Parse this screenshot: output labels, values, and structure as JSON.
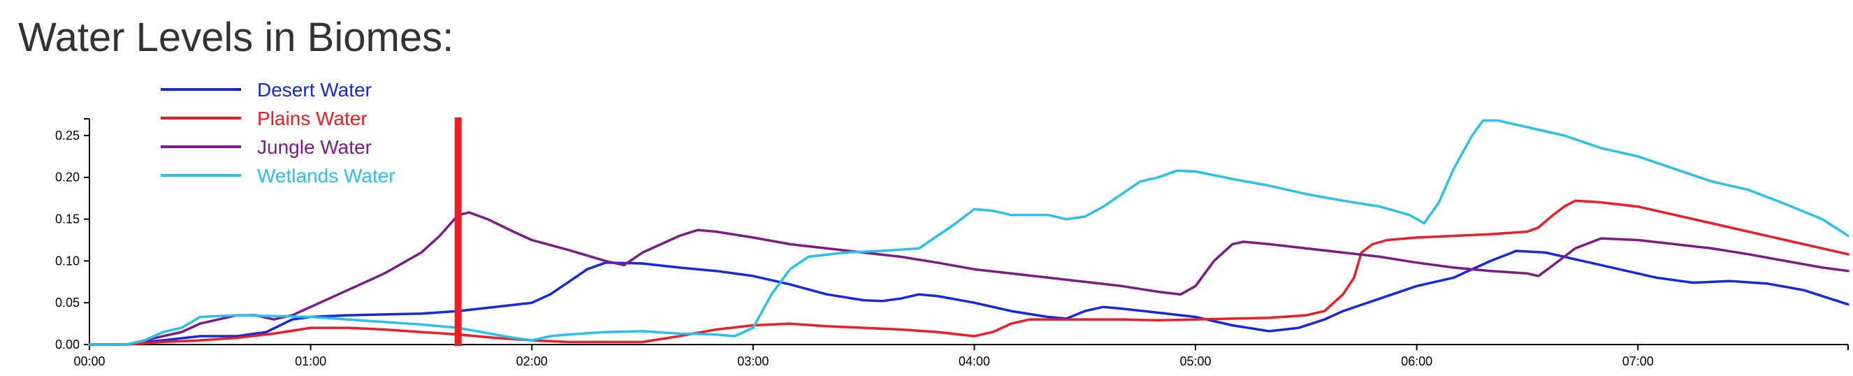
{
  "page": {
    "title": "Water Levels in Biomes:"
  },
  "chart_data": {
    "type": "line",
    "title": "Water Levels in Biomes:",
    "xlabel": "",
    "ylabel": "",
    "x_unit": "minutes",
    "xlim": [
      0,
      477
    ],
    "ylim": [
      0,
      0.27
    ],
    "x_ticks": [
      {
        "value": 0,
        "label": "00:00"
      },
      {
        "value": 60,
        "label": "01:00"
      },
      {
        "value": 120,
        "label": "02:00"
      },
      {
        "value": 180,
        "label": "03:00"
      },
      {
        "value": 240,
        "label": "04:00"
      },
      {
        "value": 300,
        "label": "05:00"
      },
      {
        "value": 360,
        "label": "06:00"
      },
      {
        "value": 420,
        "label": "07:00"
      }
    ],
    "y_ticks": [
      {
        "value": 0.0,
        "label": "0.00"
      },
      {
        "value": 0.05,
        "label": "0.05"
      },
      {
        "value": 0.1,
        "label": "0.10"
      },
      {
        "value": 0.15,
        "label": "0.15"
      },
      {
        "value": 0.2,
        "label": "0.20"
      },
      {
        "value": 0.25,
        "label": "0.25"
      }
    ],
    "grid": false,
    "legend_position": "top-left",
    "marker": {
      "x": 100,
      "color": "#ee1c24"
    },
    "series": [
      {
        "name": "Desert Water",
        "color": "#1428e0",
        "points": [
          [
            0,
            0
          ],
          [
            10,
            0
          ],
          [
            15,
            0.003
          ],
          [
            20,
            0.005
          ],
          [
            30,
            0.01
          ],
          [
            40,
            0.01
          ],
          [
            48,
            0.015
          ],
          [
            55,
            0.03
          ],
          [
            60,
            0.033
          ],
          [
            70,
            0.035
          ],
          [
            80,
            0.036
          ],
          [
            90,
            0.037
          ],
          [
            100,
            0.04
          ],
          [
            110,
            0.045
          ],
          [
            120,
            0.05
          ],
          [
            125,
            0.06
          ],
          [
            130,
            0.075
          ],
          [
            135,
            0.09
          ],
          [
            140,
            0.098
          ],
          [
            150,
            0.097
          ],
          [
            160,
            0.092
          ],
          [
            170,
            0.088
          ],
          [
            180,
            0.082
          ],
          [
            190,
            0.072
          ],
          [
            200,
            0.06
          ],
          [
            210,
            0.053
          ],
          [
            215,
            0.052
          ],
          [
            220,
            0.055
          ],
          [
            225,
            0.06
          ],
          [
            230,
            0.058
          ],
          [
            240,
            0.05
          ],
          [
            250,
            0.04
          ],
          [
            260,
            0.033
          ],
          [
            265,
            0.031
          ],
          [
            270,
            0.04
          ],
          [
            275,
            0.045
          ],
          [
            280,
            0.043
          ],
          [
            290,
            0.038
          ],
          [
            300,
            0.033
          ],
          [
            310,
            0.023
          ],
          [
            320,
            0.016
          ],
          [
            328,
            0.02
          ],
          [
            335,
            0.03
          ],
          [
            340,
            0.04
          ],
          [
            350,
            0.055
          ],
          [
            360,
            0.07
          ],
          [
            370,
            0.08
          ],
          [
            380,
            0.1
          ],
          [
            387,
            0.112
          ],
          [
            395,
            0.11
          ],
          [
            405,
            0.1
          ],
          [
            415,
            0.09
          ],
          [
            425,
            0.08
          ],
          [
            435,
            0.074
          ],
          [
            445,
            0.076
          ],
          [
            455,
            0.073
          ],
          [
            465,
            0.065
          ],
          [
            477,
            0.048
          ]
        ]
      },
      {
        "name": "Plains Water",
        "color": "#ee1c24",
        "points": [
          [
            0,
            0
          ],
          [
            10,
            0
          ],
          [
            20,
            0.003
          ],
          [
            30,
            0.005
          ],
          [
            40,
            0.008
          ],
          [
            50,
            0.013
          ],
          [
            60,
            0.02
          ],
          [
            70,
            0.02
          ],
          [
            80,
            0.018
          ],
          [
            90,
            0.015
          ],
          [
            100,
            0.012
          ],
          [
            110,
            0.008
          ],
          [
            120,
            0.005
          ],
          [
            130,
            0.003
          ],
          [
            140,
            0.003
          ],
          [
            150,
            0.003
          ],
          [
            160,
            0.01
          ],
          [
            170,
            0.018
          ],
          [
            180,
            0.023
          ],
          [
            190,
            0.025
          ],
          [
            200,
            0.022
          ],
          [
            210,
            0.02
          ],
          [
            220,
            0.018
          ],
          [
            230,
            0.015
          ],
          [
            240,
            0.01
          ],
          [
            245,
            0.015
          ],
          [
            250,
            0.025
          ],
          [
            255,
            0.03
          ],
          [
            260,
            0.03
          ],
          [
            270,
            0.03
          ],
          [
            280,
            0.03
          ],
          [
            290,
            0.029
          ],
          [
            300,
            0.03
          ],
          [
            310,
            0.031
          ],
          [
            320,
            0.032
          ],
          [
            330,
            0.035
          ],
          [
            335,
            0.04
          ],
          [
            340,
            0.06
          ],
          [
            343,
            0.08
          ],
          [
            345,
            0.11
          ],
          [
            348,
            0.12
          ],
          [
            352,
            0.125
          ],
          [
            360,
            0.128
          ],
          [
            370,
            0.13
          ],
          [
            380,
            0.132
          ],
          [
            390,
            0.135
          ],
          [
            393,
            0.14
          ],
          [
            397,
            0.155
          ],
          [
            400,
            0.165
          ],
          [
            403,
            0.172
          ],
          [
            410,
            0.17
          ],
          [
            420,
            0.165
          ],
          [
            430,
            0.155
          ],
          [
            440,
            0.145
          ],
          [
            450,
            0.135
          ],
          [
            460,
            0.125
          ],
          [
            470,
            0.115
          ],
          [
            477,
            0.108
          ]
        ]
      },
      {
        "name": "Jungle Water",
        "color": "#7d1a87",
        "points": [
          [
            0,
            0
          ],
          [
            10,
            0
          ],
          [
            15,
            0.005
          ],
          [
            20,
            0.01
          ],
          [
            25,
            0.015
          ],
          [
            30,
            0.025
          ],
          [
            35,
            0.03
          ],
          [
            40,
            0.035
          ],
          [
            45,
            0.035
          ],
          [
            50,
            0.03
          ],
          [
            55,
            0.035
          ],
          [
            60,
            0.045
          ],
          [
            70,
            0.065
          ],
          [
            80,
            0.085
          ],
          [
            90,
            0.11
          ],
          [
            95,
            0.13
          ],
          [
            100,
            0.155
          ],
          [
            103,
            0.158
          ],
          [
            108,
            0.15
          ],
          [
            115,
            0.135
          ],
          [
            120,
            0.125
          ],
          [
            130,
            0.113
          ],
          [
            140,
            0.1
          ],
          [
            145,
            0.095
          ],
          [
            150,
            0.11
          ],
          [
            160,
            0.13
          ],
          [
            165,
            0.137
          ],
          [
            170,
            0.135
          ],
          [
            180,
            0.128
          ],
          [
            190,
            0.12
          ],
          [
            200,
            0.115
          ],
          [
            210,
            0.11
          ],
          [
            220,
            0.105
          ],
          [
            230,
            0.098
          ],
          [
            240,
            0.09
          ],
          [
            250,
            0.085
          ],
          [
            260,
            0.08
          ],
          [
            270,
            0.075
          ],
          [
            280,
            0.07
          ],
          [
            290,
            0.063
          ],
          [
            296,
            0.06
          ],
          [
            300,
            0.07
          ],
          [
            305,
            0.1
          ],
          [
            310,
            0.12
          ],
          [
            313,
            0.123
          ],
          [
            320,
            0.12
          ],
          [
            330,
            0.115
          ],
          [
            340,
            0.11
          ],
          [
            350,
            0.105
          ],
          [
            360,
            0.098
          ],
          [
            370,
            0.092
          ],
          [
            380,
            0.088
          ],
          [
            390,
            0.085
          ],
          [
            393,
            0.082
          ],
          [
            397,
            0.095
          ],
          [
            403,
            0.115
          ],
          [
            410,
            0.127
          ],
          [
            420,
            0.125
          ],
          [
            430,
            0.12
          ],
          [
            440,
            0.115
          ],
          [
            450,
            0.108
          ],
          [
            460,
            0.1
          ],
          [
            470,
            0.092
          ],
          [
            477,
            0.088
          ]
        ]
      },
      {
        "name": "Wetlands Water",
        "color": "#29c0ee",
        "points": [
          [
            0,
            0
          ],
          [
            10,
            0
          ],
          [
            15,
            0.005
          ],
          [
            20,
            0.015
          ],
          [
            25,
            0.02
          ],
          [
            30,
            0.033
          ],
          [
            40,
            0.035
          ],
          [
            50,
            0.034
          ],
          [
            60,
            0.033
          ],
          [
            70,
            0.03
          ],
          [
            80,
            0.027
          ],
          [
            90,
            0.024
          ],
          [
            100,
            0.02
          ],
          [
            110,
            0.012
          ],
          [
            115,
            0.008
          ],
          [
            120,
            0.005
          ],
          [
            125,
            0.01
          ],
          [
            130,
            0.012
          ],
          [
            140,
            0.015
          ],
          [
            150,
            0.016
          ],
          [
            160,
            0.013
          ],
          [
            170,
            0.012
          ],
          [
            175,
            0.01
          ],
          [
            180,
            0.02
          ],
          [
            185,
            0.06
          ],
          [
            190,
            0.09
          ],
          [
            195,
            0.105
          ],
          [
            205,
            0.11
          ],
          [
            215,
            0.112
          ],
          [
            225,
            0.115
          ],
          [
            230,
            0.13
          ],
          [
            235,
            0.145
          ],
          [
            240,
            0.162
          ],
          [
            245,
            0.16
          ],
          [
            250,
            0.155
          ],
          [
            260,
            0.155
          ],
          [
            265,
            0.15
          ],
          [
            270,
            0.153
          ],
          [
            275,
            0.165
          ],
          [
            280,
            0.18
          ],
          [
            285,
            0.195
          ],
          [
            290,
            0.2
          ],
          [
            295,
            0.208
          ],
          [
            300,
            0.207
          ],
          [
            310,
            0.198
          ],
          [
            320,
            0.19
          ],
          [
            330,
            0.18
          ],
          [
            340,
            0.172
          ],
          [
            350,
            0.165
          ],
          [
            358,
            0.155
          ],
          [
            362,
            0.145
          ],
          [
            366,
            0.17
          ],
          [
            370,
            0.21
          ],
          [
            375,
            0.25
          ],
          [
            378,
            0.268
          ],
          [
            382,
            0.268
          ],
          [
            390,
            0.26
          ],
          [
            400,
            0.25
          ],
          [
            410,
            0.235
          ],
          [
            420,
            0.225
          ],
          [
            430,
            0.21
          ],
          [
            440,
            0.195
          ],
          [
            450,
            0.185
          ],
          [
            460,
            0.168
          ],
          [
            470,
            0.15
          ],
          [
            477,
            0.13
          ]
        ]
      }
    ]
  }
}
